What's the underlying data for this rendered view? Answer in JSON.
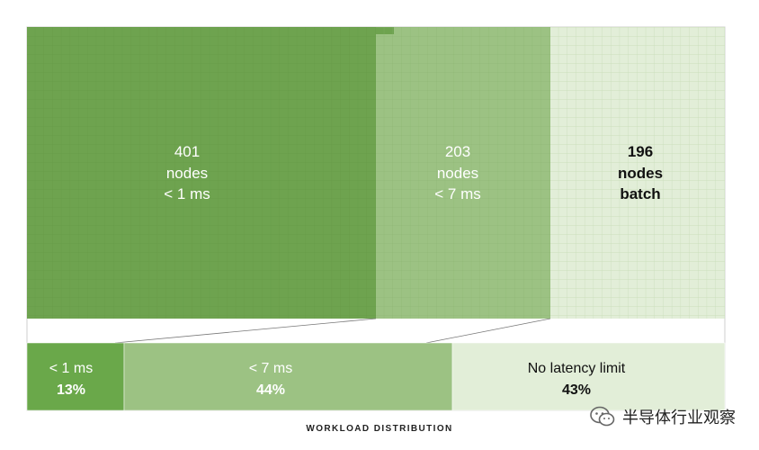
{
  "chart_data": {
    "type": "treemap",
    "caption": "WORKLOAD DISTRIBUTION",
    "node_groups": [
      {
        "count": "401",
        "unit": "nodes",
        "latency": "< 1 ms",
        "nodes": 401,
        "color": "#6ea34f",
        "text_color": "#ffffff"
      },
      {
        "count": "203",
        "unit": "nodes",
        "latency": "< 7 ms",
        "nodes": 203,
        "color": "#9cc283",
        "text_color": "#ffffff"
      },
      {
        "count": "196",
        "unit": "nodes",
        "latency": "batch",
        "nodes": 196,
        "color": "#e2eed8",
        "text_color": "#111111"
      }
    ],
    "workload_split": [
      {
        "label": "< 1 ms",
        "percent_label": "13%",
        "percent": 13,
        "color": "#6aa84a",
        "text_color": "#ffffff"
      },
      {
        "label": "< 7 ms",
        "percent_label": "44%",
        "percent": 44,
        "color": "#9cc283",
        "text_color": "#ffffff"
      },
      {
        "label": "No latency limit",
        "percent_label": "43%",
        "percent": 43,
        "color": "#e2eed8",
        "text_color": "#111111"
      }
    ]
  },
  "watermark": {
    "text": "半导体行业观察",
    "icon": "wechat-icon"
  }
}
